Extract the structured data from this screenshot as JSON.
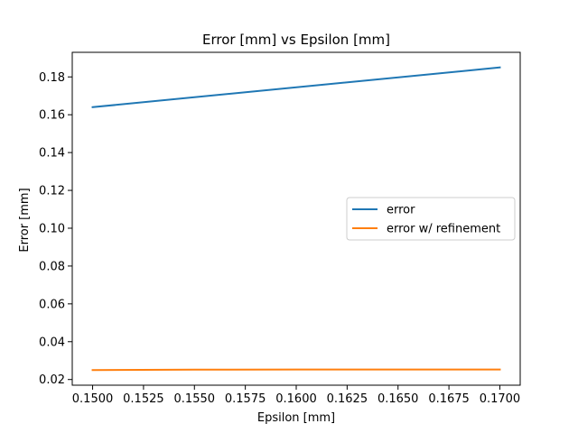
{
  "chart_data": {
    "type": "line",
    "title": "Error [mm] vs Epsilon [mm]",
    "xlabel": "Epsilon [mm]",
    "ylabel": "Error [mm]",
    "xlim": [
      0.149,
      0.171
    ],
    "ylim": [
      0.017,
      0.193
    ],
    "x_ticks": [
      0.15,
      0.1525,
      0.155,
      0.1575,
      0.16,
      0.1625,
      0.165,
      0.1675,
      0.17
    ],
    "x_tick_labels": [
      "0.1500",
      "0.1525",
      "0.1550",
      "0.1575",
      "0.1600",
      "0.1625",
      "0.1650",
      "0.1675",
      "0.1700"
    ],
    "y_ticks": [
      0.02,
      0.04,
      0.06,
      0.08,
      0.1,
      0.12,
      0.14,
      0.16,
      0.18
    ],
    "y_tick_labels": [
      "0.02",
      "0.04",
      "0.06",
      "0.08",
      "0.10",
      "0.12",
      "0.14",
      "0.16",
      "0.18"
    ],
    "grid": false,
    "legend_position": "center-right",
    "series": [
      {
        "name": "error",
        "color": "#1f77b4",
        "x": [
          0.15,
          0.17
        ],
        "y": [
          0.164,
          0.185
        ]
      },
      {
        "name": "error w/ refinement",
        "color": "#ff7f0e",
        "x": [
          0.15,
          0.155,
          0.16,
          0.165,
          0.17
        ],
        "y": [
          0.025,
          0.0252,
          0.0253,
          0.0253,
          0.0253
        ]
      }
    ]
  }
}
